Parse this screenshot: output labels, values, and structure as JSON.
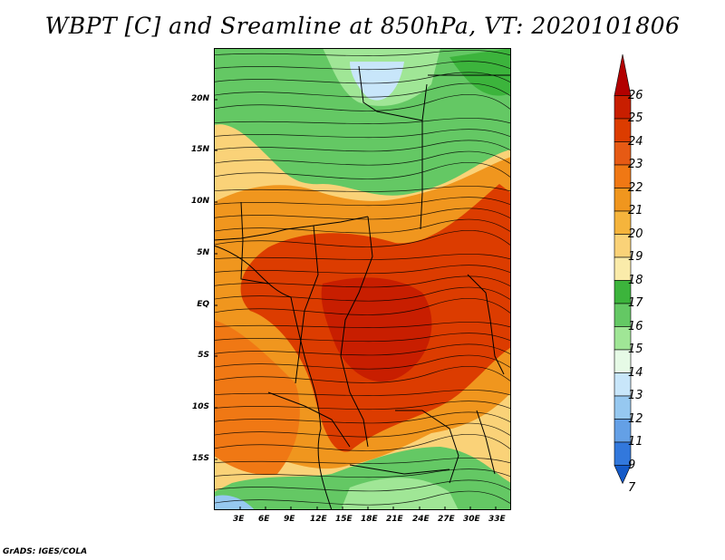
{
  "title": "WBPT [C] and Sreamline at 850hPa, VT: 2020101806",
  "lat_labels": [
    "20N",
    "15N",
    "10N",
    "5N",
    "EQ",
    "5S",
    "10S",
    "15S"
  ],
  "lon_labels": [
    "3E",
    "6E",
    "9E",
    "12E",
    "15E",
    "18E",
    "21E",
    "24E",
    "27E",
    "30E",
    "33E"
  ],
  "colorbar": {
    "labels": [
      "26",
      "25",
      "24",
      "23",
      "22",
      "21",
      "20",
      "19",
      "18",
      "17",
      "16",
      "15",
      "14",
      "13",
      "12",
      "11",
      "9",
      "7"
    ],
    "colors": [
      "#b20000",
      "#c81e00",
      "#dc3c00",
      "#e65a14",
      "#f07814",
      "#f0961e",
      "#f5b43c",
      "#fad278",
      "#faebaa",
      "#3cb43c",
      "#64c864",
      "#a0e696",
      "#e6fae6",
      "#c8e6fa",
      "#96c8f0",
      "#64a0e6",
      "#3278dc",
      "#145ac8"
    ]
  },
  "credit": "GrADS: IGES/COLA"
}
